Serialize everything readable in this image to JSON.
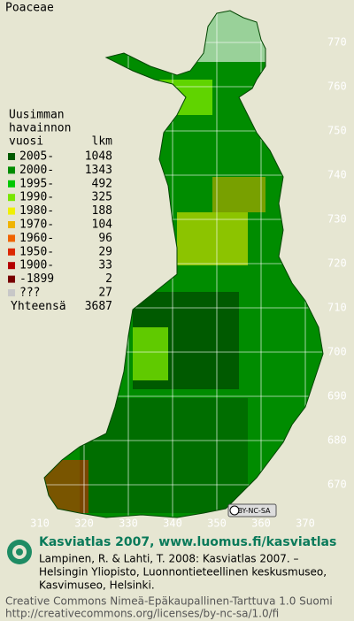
{
  "title": "Poaceae",
  "legend": {
    "heading": [
      "Uusimman",
      "havainnon",
      "vuosi"
    ],
    "count_heading": "lkm",
    "rows": [
      {
        "label": "2005-",
        "count": 1048,
        "color": "#005a00"
      },
      {
        "label": "2000-",
        "count": 1343,
        "color": "#008c00"
      },
      {
        "label": "1995-",
        "count": 492,
        "color": "#00c800"
      },
      {
        "label": "1990-",
        "count": 325,
        "color": "#78e600"
      },
      {
        "label": "1980-",
        "count": 188,
        "color": "#f0f000"
      },
      {
        "label": "1970-",
        "count": 104,
        "color": "#f0b400"
      },
      {
        "label": "1960-",
        "count": 96,
        "color": "#f06400"
      },
      {
        "label": "1950-",
        "count": 29,
        "color": "#dc2800"
      },
      {
        "label": "1900-",
        "count": 33,
        "color": "#b40000"
      },
      {
        "label": "-1899",
        "count": 2,
        "color": "#780000"
      },
      {
        "label": "???",
        "count": 27,
        "color": "#c8c8c8"
      }
    ],
    "total_label": "Yhteensä",
    "total": 3687
  },
  "map": {
    "yticks": [
      770,
      760,
      750,
      740,
      730,
      720,
      710,
      700,
      690,
      680,
      670
    ],
    "xticks": [
      310,
      320,
      330,
      340,
      350,
      360,
      370
    ]
  },
  "license_badge": "BY-NC-SA",
  "footer": {
    "site": "Kasviatlas 2007, www.luomus.fi/kasviatlas",
    "citation": [
      "Lampinen, R. & Lahti, T. 2008: Kasviatlas 2007. –",
      "Helsingin Yliopisto, Luonnontieteellinen keskusmuseo,",
      "Kasvimuseo, Helsinki."
    ],
    "license": [
      "Creative Commons Nimeä-Epäkaupallinen-Tarttuva 1.0 Suomi",
      "http://creativecommons.org/licenses/by-nc-sa/1.0/fi"
    ]
  }
}
